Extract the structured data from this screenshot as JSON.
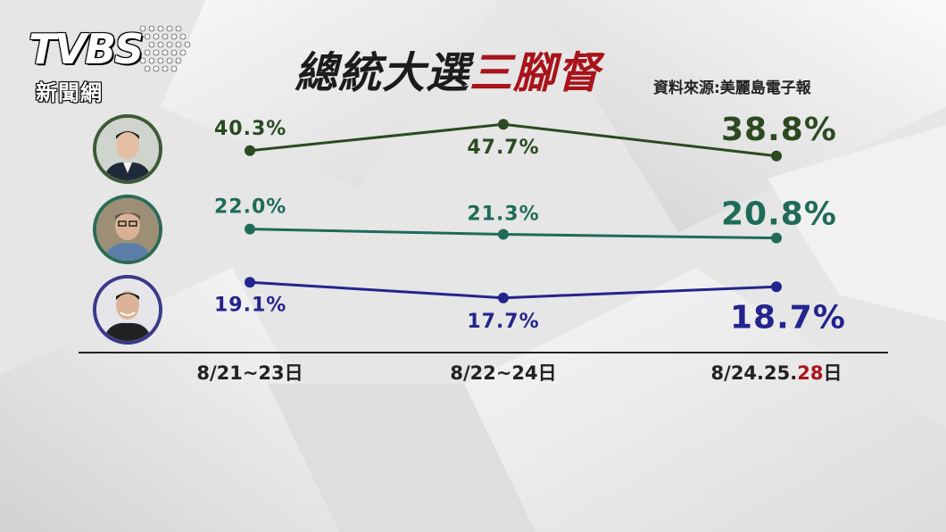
{
  "logo": {
    "main": "TVBS",
    "sub": "新聞網"
  },
  "title": {
    "part1": "總統大選",
    "part2": "三腳督"
  },
  "source": "資料來源:美麗島電子報",
  "colors": {
    "series1": "#2b4a22",
    "series2": "#1f6b58",
    "series3": "#24248e",
    "highlight": "#a8141b",
    "axis": "#222222"
  },
  "chart_data": {
    "type": "line",
    "categories": [
      "8/21~23日",
      "8/22~24日",
      "8/24.25.28日"
    ],
    "category_parts": [
      [
        {
          "text": "8/21~23日",
          "highlight": false
        }
      ],
      [
        {
          "text": "8/22~24日",
          "highlight": false
        }
      ],
      [
        {
          "text": "8/24.25.",
          "highlight": false
        },
        {
          "text": "28",
          "highlight": true
        },
        {
          "text": "日",
          "highlight": false
        }
      ]
    ],
    "series": [
      {
        "values": [
          40.3,
          47.7,
          38.8
        ],
        "labels": [
          "40.3%",
          "47.7%",
          "38.8%"
        ],
        "color": "#2b4a22",
        "avatar": "candidate-1-photo"
      },
      {
        "values": [
          22.0,
          21.3,
          20.8
        ],
        "labels": [
          "22.0%",
          "21.3%",
          "20.8%"
        ],
        "color": "#1f6b58",
        "avatar": "candidate-2-photo"
      },
      {
        "values": [
          19.1,
          17.7,
          18.7
        ],
        "labels": [
          "19.1%",
          "17.7%",
          "18.7%"
        ],
        "color": "#24248e",
        "avatar": "candidate-3-photo"
      }
    ]
  }
}
